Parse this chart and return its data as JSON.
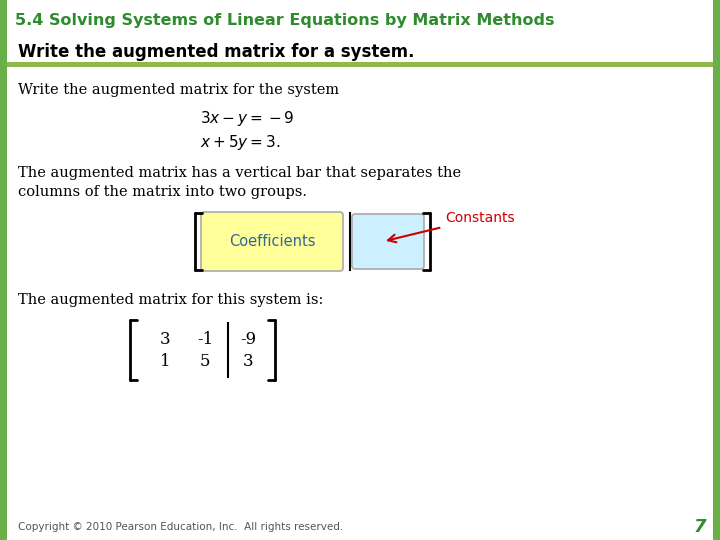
{
  "title": "5.4 Solving Systems of Linear Equations by Matrix Methods",
  "title_color": "#2e8b2e",
  "subtitle": "Write the augmented matrix for a system.",
  "subtitle_color": "#000000",
  "subtitle_bar_color": "#8db84a",
  "bg_color": "#ffffff",
  "left_bar_color": "#6ab04a",
  "right_bar_color": "#6ab04a",
  "body_text1": "Write the augmented matrix for the system",
  "eq1": "$3x-y=-9$",
  "eq2": "$x+5y=3.$",
  "body_text2a": "The augmented matrix has a vertical bar that separates the",
  "body_text2b": "columns of the matrix into two groups.",
  "coeff_label": "Coefficients",
  "const_label": "Constants",
  "coeff_box_color": "#ffff99",
  "const_box_color": "#ccf0ff",
  "arrow_color": "#cc0000",
  "body_text3": "The augmented matrix for this system is:",
  "matrix_content": [
    [
      3,
      -1,
      -9
    ],
    [
      1,
      5,
      3
    ]
  ],
  "copyright": "Copyright © 2010 Pearson Education, Inc.  All rights reserved.",
  "page_num": "7",
  "page_num_color": "#2e8b2e",
  "font_size_title": 11.5,
  "font_size_subtitle": 12,
  "font_size_body": 10.5,
  "font_size_eq": 11
}
